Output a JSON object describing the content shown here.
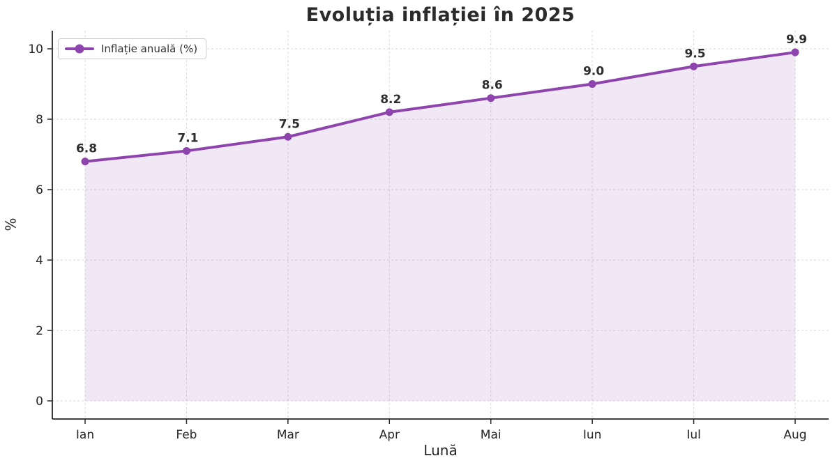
{
  "title": "Evoluția inflației în 2025",
  "legend": {
    "label": "Inflație anuală (%)"
  },
  "chart_data": {
    "type": "line",
    "title": "Evoluția inflației în 2025",
    "xlabel": "Lună",
    "ylabel": "%",
    "categories": [
      "Ian",
      "Feb",
      "Mar",
      "Apr",
      "Mai",
      "Iun",
      "Iul",
      "Aug"
    ],
    "series": [
      {
        "name": "Inflație anuală (%)",
        "values": [
          6.8,
          7.1,
          7.5,
          8.2,
          8.6,
          9.0,
          9.5,
          9.9
        ]
      }
    ],
    "data_labels": [
      "6.8",
      "7.1",
      "7.5",
      "8.2",
      "8.6",
      "9.0",
      "9.5",
      "9.9"
    ],
    "ylim": [
      0,
      10
    ],
    "yticks": [
      0,
      2,
      4,
      6,
      8,
      10
    ],
    "grid": true,
    "grid_style": "dashed",
    "legend_position": "upper left",
    "marker": "circle",
    "area_fill": true,
    "colors": {
      "line": "#8e44ad",
      "fill": "rgba(142,68,173,0.12)",
      "grid": "#d7d7d7",
      "spine": "#262626",
      "tick_text": "#262626",
      "label_text": "#2e2e2e"
    }
  }
}
